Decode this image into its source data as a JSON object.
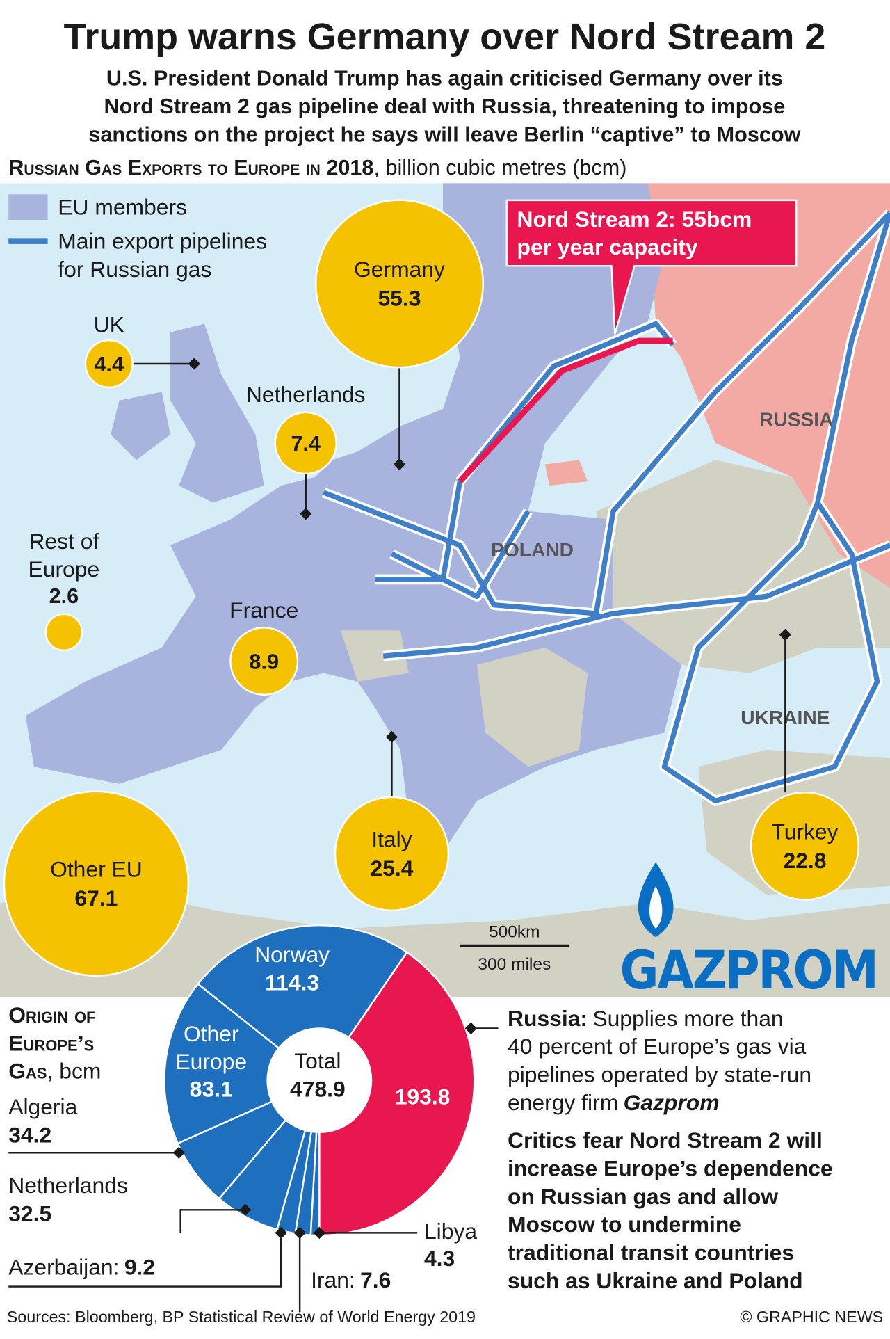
{
  "header": {
    "title": "Trump warns Germany over Nord Stream 2",
    "subtitle": [
      "U.S. President Donald Trump has again criticised Germany over its",
      "Nord Stream 2 gas pipeline deal with Russia, threatening to impose",
      "sanctions on the project he says will leave Berlin “captive” to Moscow"
    ],
    "section_title": "Russian Gas Exports to Europe in 2018",
    "section_unit": ", billion cubic metres (bcm)"
  },
  "legend": {
    "eu_members": "EU members",
    "pipelines": [
      "Main export pipelines",
      "for Russian gas"
    ]
  },
  "callout": [
    "Nord Stream 2: 55bcm",
    "per year capacity"
  ],
  "map_labels": [
    "RUSSIA",
    "POLAND",
    "UKRAINE"
  ],
  "bubbles": {
    "color": "#f5c200",
    "items": [
      {
        "name": [
          "Germany"
        ],
        "value": 55.3
      },
      {
        "name": [
          "UK"
        ],
        "value": 4.4
      },
      {
        "name": [
          "Netherlands"
        ],
        "value": 7.4
      },
      {
        "name": [
          "Rest of",
          "Europe"
        ],
        "value": 2.6
      },
      {
        "name": [
          "France"
        ],
        "value": 8.9
      },
      {
        "name": [
          "Italy"
        ],
        "value": 25.4
      },
      {
        "name": [
          "Other EU"
        ],
        "value": 67.1
      },
      {
        "name": [
          "Turkey"
        ],
        "value": 22.8
      }
    ]
  },
  "scale": [
    "500km",
    "300 miles"
  ],
  "logo": "GAZPROM",
  "pie": {
    "type": "pie",
    "title": [
      "Origin of",
      "Europe’s",
      "Gas"
    ],
    "unit": ", bcm",
    "center_label": "Total",
    "total": 478.9,
    "slices": [
      {
        "value": 193.8,
        "color": "#e8174f"
      },
      {
        "name": [
          "Libya"
        ],
        "value": 4.3,
        "color": "#1f6fbf"
      },
      {
        "name": [
          "Iran:"
        ],
        "value": 7.6,
        "color": "#1f6fbf"
      },
      {
        "name": [
          "Azerbaijan:"
        ],
        "value": 9.2,
        "color": "#1f6fbf"
      },
      {
        "name": [
          "Netherlands"
        ],
        "value": 32.5,
        "color": "#1f6fbf"
      },
      {
        "name": [
          "Algeria"
        ],
        "value": 34.2,
        "color": "#1f6fbf"
      },
      {
        "name": [
          "Other",
          "Europe"
        ],
        "value": 83.1,
        "color": "#1f6fbf"
      },
      {
        "name": [
          "Norway"
        ],
        "value": 114.3,
        "color": "#1f6fbf"
      }
    ]
  },
  "notes": {
    "russia": {
      "label": "Russia:",
      "lines": [
        "Supplies more than",
        "40 percent of Europe’s gas via",
        "pipelines operated by state-run",
        "energy firm"
      ],
      "emphasis": "Gazprom"
    },
    "critics": [
      "Critics fear Nord Stream 2 will",
      "increase Europe’s dependence",
      "on Russian gas and allow",
      "Moscow to undermine",
      "traditional transit countries",
      "such as Ukraine and Poland"
    ]
  },
  "footer": {
    "source": "Sources: Bloomberg, BP Statistical Review of World Energy 2019",
    "credit": "© GRAPHIC NEWS"
  }
}
